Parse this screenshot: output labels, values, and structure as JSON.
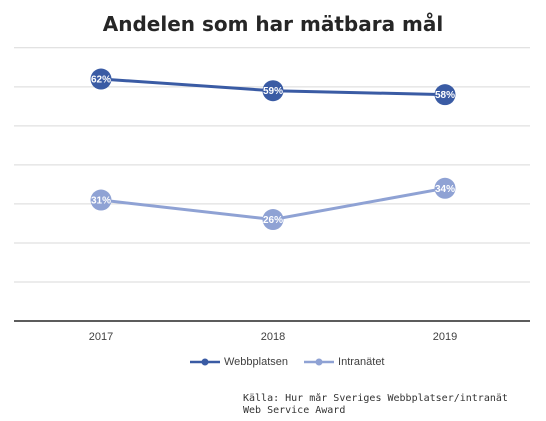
{
  "chart_data": {
    "type": "line",
    "title": "Andelen som har mätbara mål",
    "categories": [
      "2017",
      "2018",
      "2019"
    ],
    "series": [
      {
        "name": "Webbplatsen",
        "values": [
          62,
          59,
          58
        ],
        "labels": [
          "62%",
          "59%",
          "58%"
        ],
        "color": "#3a5ba4"
      },
      {
        "name": "Intranätet",
        "values": [
          31,
          26,
          34
        ],
        "labels": [
          "31%",
          "26%",
          "34%"
        ],
        "color": "#8fa2d4"
      }
    ],
    "ylim": [
      0,
      72
    ],
    "y_gridline_step": 10,
    "grid": true,
    "legend_position": "bottom"
  },
  "source": {
    "line1": "Källa: Hur mår Sveriges Webbplatser/intranät",
    "line2": "Web Service Award"
  }
}
